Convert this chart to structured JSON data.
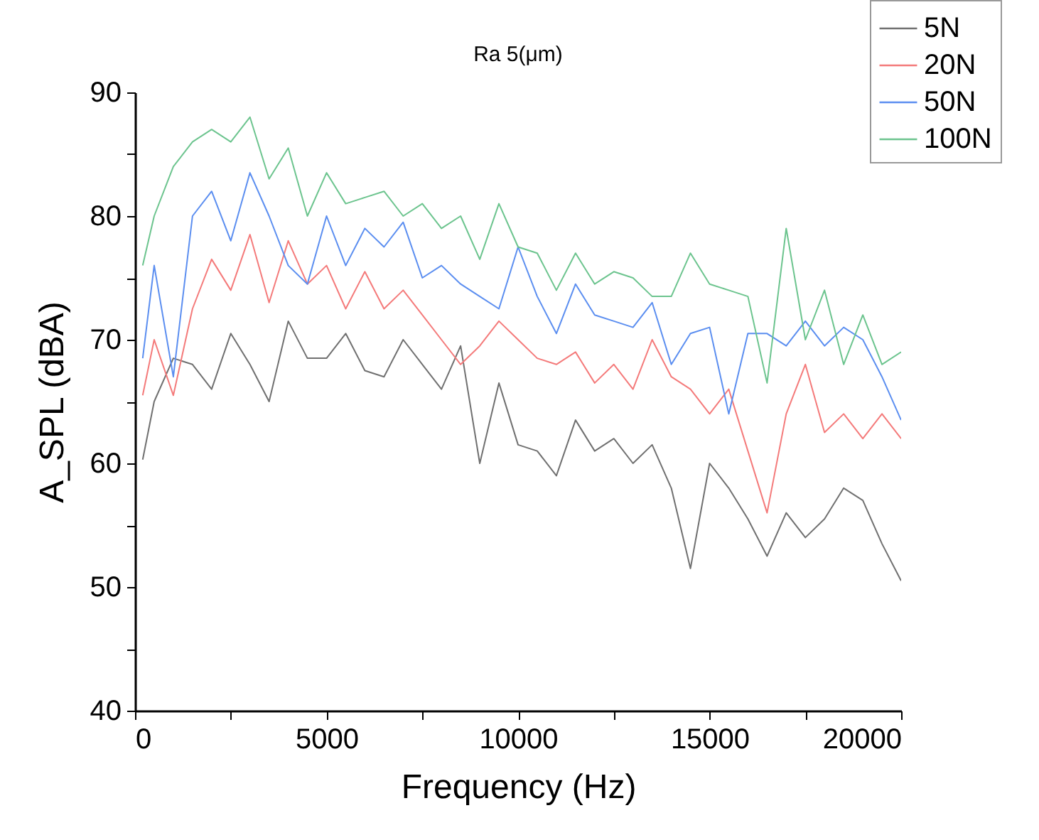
{
  "chart_data": {
    "type": "line",
    "title": "Ra 5(μm)",
    "xlabel": "Frequency (Hz)",
    "ylabel": "A_SPL (dBA)",
    "x": [
      200,
      500,
      1000,
      1500,
      2000,
      2500,
      3000,
      3500,
      4000,
      4500,
      5000,
      5500,
      6000,
      6500,
      7000,
      7500,
      8000,
      8500,
      9000,
      9500,
      10000,
      10500,
      11000,
      11500,
      12000,
      12500,
      13000,
      13500,
      14000,
      14500,
      15000,
      15500,
      16000,
      16500,
      17000,
      17500,
      18000,
      18500,
      19000,
      19500,
      20000
    ],
    "series": [
      {
        "name": "5N",
        "color": "#707070",
        "values": [
          60.3,
          65,
          68.5,
          68,
          66,
          70.5,
          68,
          65,
          71.5,
          68.5,
          68.5,
          70.5,
          67.5,
          67,
          70,
          68,
          66,
          69.5,
          60,
          66.5,
          61.5,
          61,
          59,
          63.5,
          61,
          62,
          60,
          61.5,
          58,
          51.5,
          60,
          58,
          55.5,
          52.5,
          56,
          54,
          55.5,
          58,
          57,
          53.5,
          50.5
        ]
      },
      {
        "name": "20N",
        "color": "#f47a7a",
        "values": [
          65.5,
          70,
          65.5,
          72.5,
          76.5,
          74,
          78.5,
          73,
          78,
          74.5,
          76,
          72.5,
          75.5,
          72.5,
          74,
          72,
          70,
          68,
          69.5,
          71.5,
          70,
          68.5,
          68,
          69,
          66.5,
          68,
          66,
          70,
          67,
          66,
          64,
          66,
          61,
          56,
          64,
          68,
          62.5,
          64,
          62,
          64,
          62
        ]
      },
      {
        "name": "50N",
        "color": "#5b8ef0",
        "values": [
          68.5,
          76,
          67,
          80,
          82,
          78,
          83.5,
          80,
          76,
          74.5,
          80,
          76,
          79,
          77.5,
          79.5,
          75,
          76,
          74.5,
          73.5,
          72.5,
          77.5,
          73.5,
          70.5,
          74.5,
          72,
          71.5,
          71,
          73,
          68,
          70.5,
          71,
          64,
          70.5,
          70.5,
          69.5,
          71.5,
          69.5,
          71,
          70,
          67,
          63.5
        ]
      },
      {
        "name": "100N",
        "color": "#6cc48e",
        "values": [
          76,
          80,
          84,
          86,
          87,
          86,
          88,
          83,
          85.5,
          80,
          83.5,
          81,
          81.5,
          82,
          80,
          81,
          79,
          80,
          76.5,
          81,
          77.5,
          77,
          74,
          77,
          74.5,
          75.5,
          75,
          73.5,
          73.5,
          77,
          74.5,
          74,
          73.5,
          66.5,
          79,
          70,
          74,
          68,
          72,
          68,
          69
        ]
      }
    ],
    "xlim": [
      0,
      20000
    ],
    "xticks": [
      0,
      {
        "value": 2500,
        "label": null
      },
      5000,
      {
        "value": 7500,
        "label": null
      },
      10000,
      {
        "value": 12500,
        "label": null
      },
      15000,
      {
        "value": 17500,
        "label": null
      },
      20000
    ],
    "ylim": [
      40,
      90
    ],
    "yticks": [
      40,
      {
        "value": 45,
        "label": null
      },
      50,
      {
        "value": 55,
        "label": null
      },
      60,
      {
        "value": 65,
        "label": null
      },
      70,
      {
        "value": 75,
        "label": null
      },
      80,
      {
        "value": 85,
        "label": null
      },
      90
    ],
    "grid": false,
    "legend": "top right",
    "line_style": "solid",
    "marker": "none"
  }
}
